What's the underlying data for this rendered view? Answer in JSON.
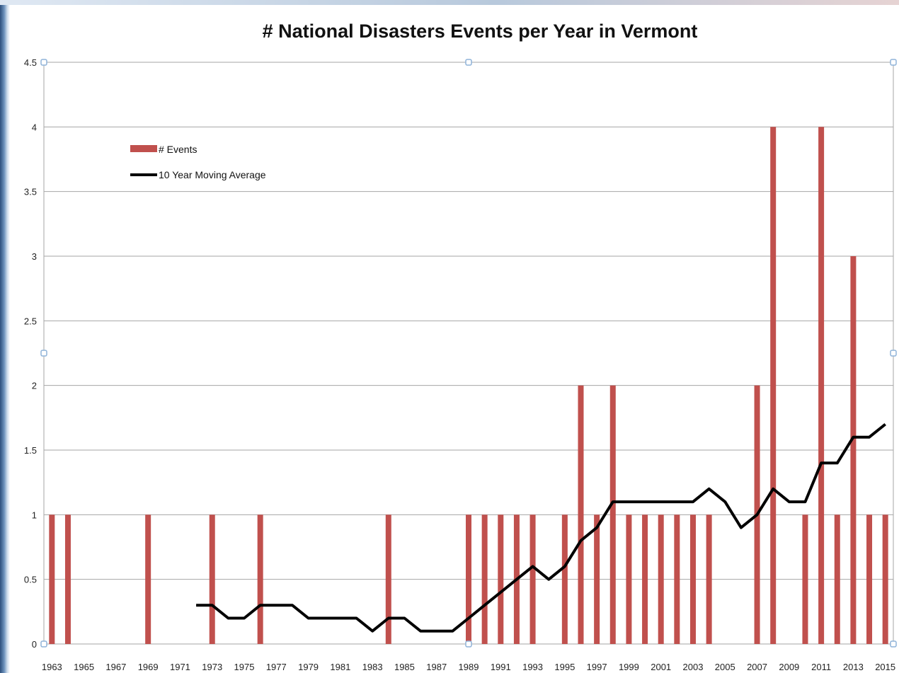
{
  "chart_data": {
    "type": "bar",
    "title": "# National Disasters Events per Year in Vermont",
    "xlabel": "",
    "ylabel": "",
    "ylim": [
      0,
      4.5
    ],
    "yticks": [
      "0",
      "0.5",
      "1",
      "1.5",
      "2",
      "2.5",
      "3",
      "3.5",
      "4",
      "4.5"
    ],
    "grid": true,
    "legend_position": "top-left",
    "colors": {
      "bars": "#c0504d",
      "line": "#000000",
      "grid": "#a6a6a6"
    },
    "categories": [
      1963,
      1964,
      1965,
      1966,
      1967,
      1968,
      1969,
      1970,
      1971,
      1972,
      1973,
      1974,
      1975,
      1976,
      1977,
      1978,
      1979,
      1980,
      1981,
      1982,
      1983,
      1984,
      1985,
      1986,
      1987,
      1988,
      1989,
      1990,
      1991,
      1992,
      1993,
      1994,
      1995,
      1996,
      1997,
      1998,
      1999,
      2000,
      2001,
      2002,
      2003,
      2004,
      2005,
      2006,
      2007,
      2008,
      2009,
      2010,
      2011,
      2012,
      2013,
      2014,
      2015
    ],
    "x_tick_labels": [
      "1963",
      "1965",
      "1967",
      "1969",
      "1971",
      "1973",
      "1975",
      "1977",
      "1979",
      "1981",
      "1983",
      "1985",
      "1987",
      "1989",
      "1991",
      "1993",
      "1995",
      "1997",
      "1999",
      "2001",
      "2003",
      "2005",
      "2007",
      "2009",
      "2011",
      "2013",
      "2015"
    ],
    "series": [
      {
        "name": "# Events",
        "type": "bar",
        "values": [
          1,
          1,
          0,
          0,
          0,
          0,
          1,
          0,
          0,
          0,
          1,
          0,
          0,
          1,
          0,
          0,
          0,
          0,
          0,
          0,
          0,
          1,
          0,
          0,
          0,
          0,
          1,
          1,
          1,
          1,
          1,
          0,
          1,
          2,
          1,
          2,
          1,
          1,
          1,
          1,
          1,
          1,
          0,
          0,
          2,
          4,
          0,
          1,
          4,
          1,
          3,
          1,
          1
        ]
      },
      {
        "name": "10 Year Moving Average",
        "type": "line",
        "values": [
          null,
          null,
          null,
          null,
          null,
          null,
          null,
          null,
          null,
          0.3,
          0.3,
          0.2,
          0.2,
          0.3,
          0.3,
          0.3,
          0.2,
          0.2,
          0.2,
          0.2,
          0.1,
          0.2,
          0.2,
          0.1,
          0.1,
          0.1,
          0.2,
          0.3,
          0.4,
          0.5,
          0.6,
          0.5,
          0.6,
          0.8,
          0.9,
          1.1,
          1.1,
          1.1,
          1.1,
          1.1,
          1.1,
          1.2,
          1.1,
          0.9,
          1.0,
          1.2,
          1.1,
          1.1,
          1.4,
          1.4,
          1.6,
          1.6,
          1.7
        ]
      }
    ]
  }
}
